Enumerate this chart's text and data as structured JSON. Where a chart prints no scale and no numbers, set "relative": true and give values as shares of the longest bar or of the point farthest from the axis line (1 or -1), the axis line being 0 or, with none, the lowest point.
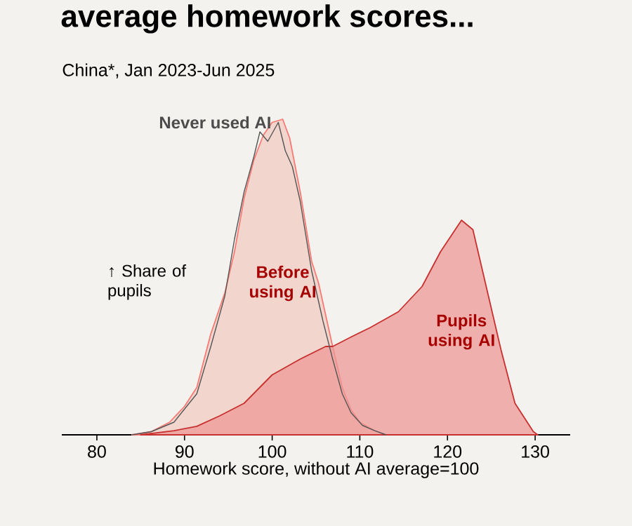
{
  "chart_data": {
    "type": "area",
    "title": "average homework scores...",
    "subtitle": "China*, Jan 2023-Jun 2025",
    "xlabel": "Homework score, without AI average=100",
    "ylabel": "↑ Share of pupils",
    "relative": true,
    "xlim": [
      76,
      134
    ],
    "xticks": [
      80,
      90,
      100,
      110,
      120,
      130
    ],
    "series": [
      {
        "name": "Before using AI",
        "color": "#f2cbc2",
        "x": [
          84,
          86.2,
          88.3,
          90,
          91.4,
          93,
          94.6,
          95.7,
          96.8,
          97.9,
          99,
          100,
          101.2,
          102,
          103.2,
          104.5,
          105.3,
          106.9,
          108,
          109,
          110,
          111.7,
          113
        ],
        "values": [
          0,
          0.01,
          0.04,
          0.09,
          0.15,
          0.32,
          0.45,
          0.58,
          0.75,
          0.87,
          0.95,
          0.99,
          1,
          0.94,
          0.77,
          0.55,
          0.48,
          0.28,
          0.15,
          0.08,
          0.04,
          0.013,
          0
        ]
      },
      {
        "name": "Pupils using AI",
        "color": "#ee9896",
        "x": [
          85,
          88.8,
          91.4,
          94,
          96.8,
          100,
          103.2,
          106.1,
          106.9,
          109,
          111.2,
          114.4,
          117.1,
          119.2,
          121.6,
          122.9,
          124.5,
          126.1,
          127.7,
          129.8,
          130.3
        ],
        "values": [
          0,
          0.013,
          0.027,
          0.06,
          0.1,
          0.19,
          0.24,
          0.28,
          0.28,
          0.31,
          0.34,
          0.39,
          0.47,
          0.58,
          0.68,
          0.65,
          0.46,
          0.27,
          0.1,
          0.01,
          0
        ]
      },
      {
        "name": "Never used AI",
        "type": "line",
        "color": "#555555",
        "x": [
          84,
          86.2,
          88.8,
          91.4,
          93,
          94.6,
          95.7,
          96.8,
          97.9,
          98.6,
          99.5,
          100.7,
          101.5,
          102.3,
          103.2,
          104.5,
          105.8,
          106.9,
          108,
          109,
          110.3,
          111.7,
          113
        ],
        "values": [
          0,
          0.01,
          0.04,
          0.13,
          0.28,
          0.44,
          0.62,
          0.77,
          0.88,
          0.96,
          0.93,
          0.99,
          0.9,
          0.85,
          0.74,
          0.52,
          0.36,
          0.24,
          0.13,
          0.07,
          0.03,
          0.013,
          0
        ]
      }
    ]
  }
}
